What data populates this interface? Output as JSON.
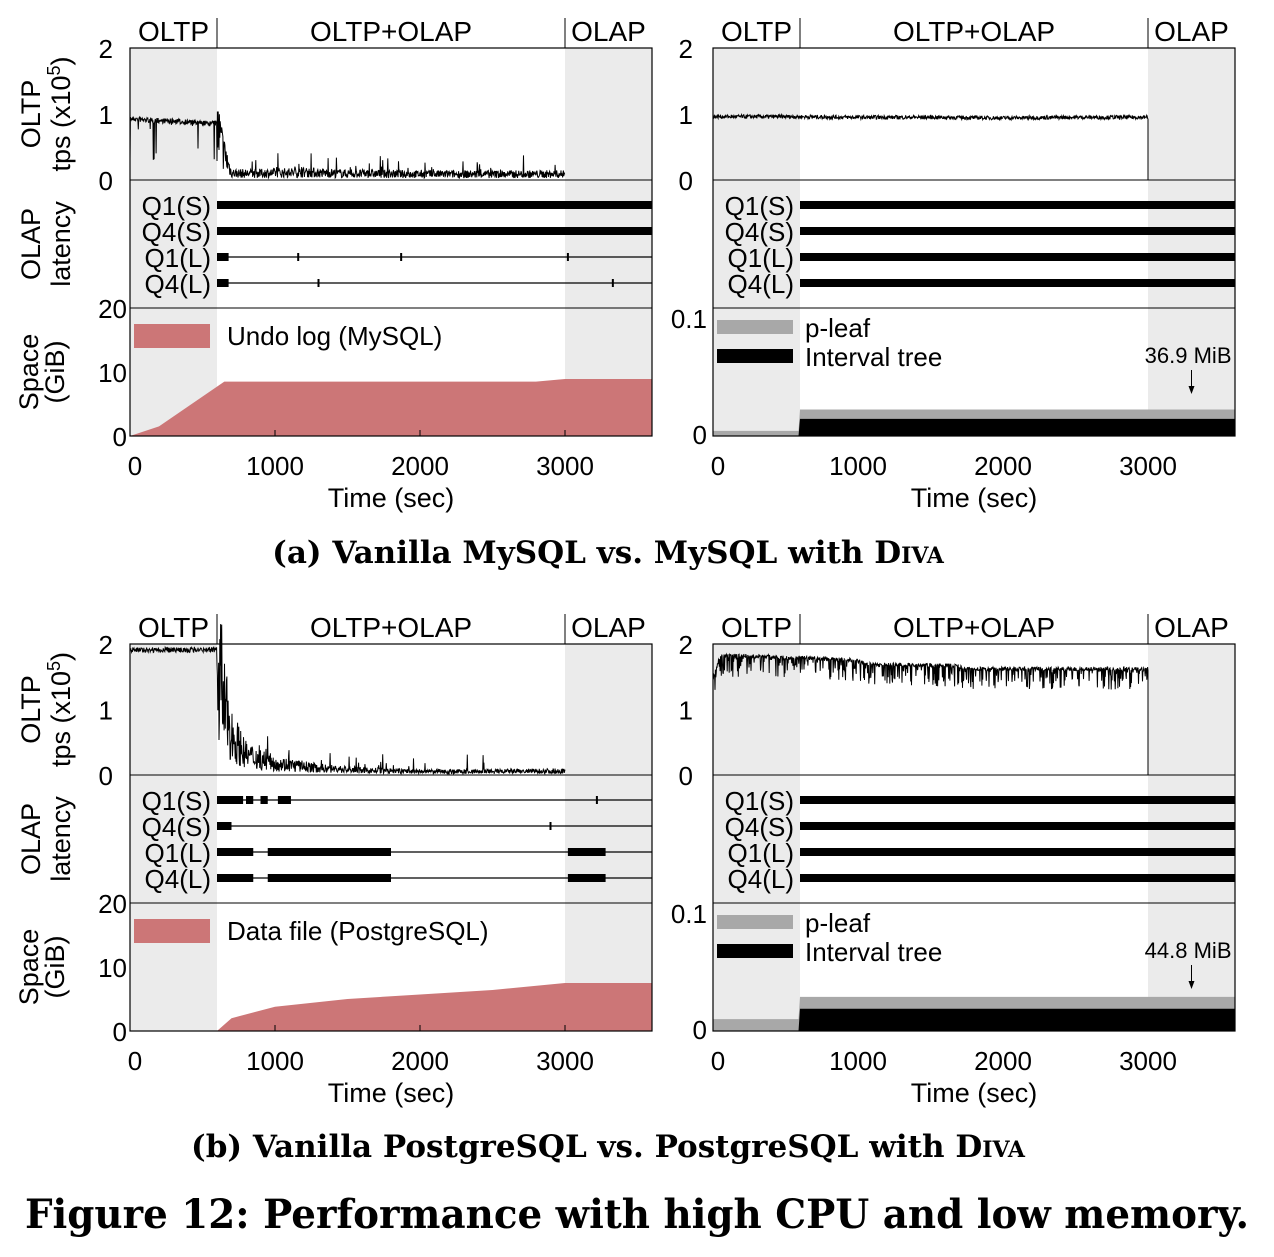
{
  "figure_caption": "Figure 12: Performance with high CPU and low memory.",
  "subfigures": [
    {
      "caption_prefix": "(a) Vanilla MySQL vs. MySQL with ",
      "caption_smallcaps": "Diva",
      "left_space_legend": "Undo log (MySQL)",
      "right_annotation": "36.9 MiB"
    },
    {
      "caption_prefix": "(b) Vanilla PostgreSQL vs. PostgreSQL with ",
      "caption_smallcaps": "Diva",
      "left_space_legend": "Data file (PostgreSQL)",
      "right_annotation": "44.8 MiB"
    }
  ],
  "labels": {
    "phase_oltp": "OLTP",
    "phase_mixed": "OLTP+OLAP",
    "phase_olap": "OLAP",
    "ylabel_tps_line1": "OLTP",
    "ylabel_tps_line2": "tps (x10",
    "ylabel_tps_exp": "5",
    "ylabel_tps_close": ")",
    "ylabel_latency_line1": "OLAP",
    "ylabel_latency_line2": "latency",
    "ylabel_space_line1": "Space",
    "ylabel_space_line2": "(GiB)",
    "xlabel": "Time (sec)",
    "queries": [
      "Q1(S)",
      "Q4(S)",
      "Q1(L)",
      "Q4(L)"
    ],
    "legend_pleaf": "p-leaf",
    "legend_interval": "Interval tree",
    "tps_ticks": [
      "2",
      "1",
      "0"
    ],
    "space_ticks_left": [
      "20",
      "10",
      "0"
    ],
    "space_ticks_right": [
      "0.1",
      "0"
    ],
    "x_ticks": [
      "0",
      "1000",
      "2000",
      "3000"
    ]
  },
  "colors": {
    "phase_shade": "#ebebeb",
    "undo_fill": "#cc7677",
    "pleaf": "#a8a8a8",
    "interval": "#000000"
  },
  "chart_data": [
    {
      "type": "line",
      "panel": "MySQL OLTP throughput",
      "xlim": [
        0,
        3600
      ],
      "ylim": [
        0,
        2
      ],
      "phases": [
        {
          "name": "OLTP",
          "x": [
            0,
            600
          ]
        },
        {
          "name": "OLTP+OLAP",
          "x": [
            600,
            3000
          ]
        },
        {
          "name": "OLAP",
          "x": [
            3000,
            3600
          ]
        }
      ],
      "x": [
        0,
        100,
        200,
        300,
        400,
        500,
        600,
        650,
        700,
        800,
        1000,
        1200,
        1500,
        2000,
        2500,
        3000
      ],
      "y": [
        0.97,
        0.95,
        0.94,
        0.93,
        0.92,
        0.9,
        0.9,
        0.45,
        0.12,
        0.11,
        0.12,
        0.13,
        0.11,
        0.1,
        0.1,
        0.1
      ]
    },
    {
      "type": "line",
      "panel": "MySQL with Diva OLTP throughput",
      "xlim": [
        0,
        3600
      ],
      "ylim": [
        0,
        2
      ],
      "x": [
        0,
        500,
        1000,
        1500,
        2000,
        2500,
        3000
      ],
      "y": [
        0.96,
        0.96,
        0.95,
        0.95,
        0.94,
        0.95,
        0.95
      ]
    },
    {
      "type": "area",
      "panel": "MySQL undo log space",
      "ylabel": "Space (GiB)",
      "xlim": [
        0,
        3600
      ],
      "ylim": [
        0,
        20
      ],
      "x": [
        0,
        200,
        650,
        2800,
        3000,
        3600
      ],
      "values": [
        0,
        1.5,
        8.5,
        8.5,
        8.9,
        8.9
      ],
      "series_name": "Undo log (MySQL)"
    },
    {
      "type": "area",
      "panel": "MySQL with Diva space",
      "ylim": [
        0,
        0.15
      ],
      "series": [
        {
          "name": "p-leaf",
          "x": [
            0,
            590,
            600,
            3600
          ],
          "values": [
            0.006,
            0.006,
            0.031,
            0.031
          ]
        },
        {
          "name": "Interval tree",
          "x": [
            0,
            590,
            600,
            3600
          ],
          "values": [
            0,
            0,
            0.02,
            0.02
          ]
        }
      ],
      "annotation": {
        "text": "36.9 MiB",
        "x": 3300
      }
    },
    {
      "type": "line",
      "panel": "PostgreSQL OLTP throughput",
      "xlim": [
        0,
        3600
      ],
      "ylim": [
        0,
        2
      ],
      "x": [
        0,
        300,
        600,
        620,
        650,
        700,
        800,
        1000,
        1300,
        1600,
        2000,
        2500,
        3000
      ],
      "y": [
        1.95,
        1.95,
        1.95,
        1.7,
        1.2,
        0.7,
        0.35,
        0.2,
        0.12,
        0.08,
        0.06,
        0.06,
        0.07
      ]
    },
    {
      "type": "line",
      "panel": "PostgreSQL with Diva OLTP throughput",
      "xlim": [
        0,
        3600
      ],
      "ylim": [
        0,
        2
      ],
      "x": [
        0,
        50,
        200,
        600,
        1000,
        1050,
        1700,
        1750,
        2500,
        3000
      ],
      "y": [
        1.5,
        1.85,
        1.85,
        1.82,
        1.78,
        1.72,
        1.7,
        1.65,
        1.65,
        1.65
      ]
    },
    {
      "type": "area",
      "panel": "PostgreSQL data file space",
      "ylabel": "Space (GiB)",
      "xlim": [
        0,
        3600
      ],
      "ylim": [
        0,
        20
      ],
      "x": [
        0,
        600,
        700,
        1000,
        1500,
        2000,
        2500,
        3000,
        3600
      ],
      "values": [
        0,
        0,
        2,
        3.8,
        5,
        5.7,
        6.4,
        7.5,
        7.5
      ],
      "series_name": "Data file (PostgreSQL)"
    },
    {
      "type": "area",
      "panel": "PostgreSQL with Diva space",
      "ylim": [
        0,
        0.15
      ],
      "series": [
        {
          "name": "p-leaf",
          "x": [
            0,
            590,
            600,
            3600
          ],
          "values": [
            0.014,
            0.014,
            0.04,
            0.04
          ]
        },
        {
          "name": "Interval tree",
          "x": [
            0,
            590,
            600,
            3600
          ],
          "values": [
            0,
            0,
            0.026,
            0.026
          ]
        }
      ],
      "annotation": {
        "text": "44.8 MiB",
        "x": 3300
      }
    }
  ]
}
